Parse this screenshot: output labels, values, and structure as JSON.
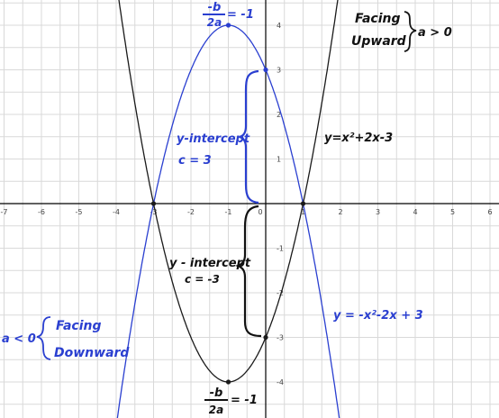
{
  "chart_data": {
    "type": "line",
    "xlim": [
      -7,
      6
    ],
    "ylim": [
      -4.7,
      4.4
    ],
    "grid": true,
    "x_ticks": [
      -7,
      -6,
      -5,
      -4,
      -3,
      -2,
      -1,
      0,
      1,
      2,
      3,
      4,
      5,
      6
    ],
    "y_ticks": [
      -4,
      -3,
      -2,
      -1,
      1,
      2,
      3,
      4
    ],
    "series": [
      {
        "name": "y=x²+2x-3",
        "color": "#1a1a1a",
        "a": 1,
        "b": 2,
        "c": -3
      },
      {
        "name": "y=-x²-2x+3",
        "color": "#2a3fd0",
        "a": -1,
        "b": -2,
        "c": 3
      }
    ],
    "points": [
      {
        "x": -1,
        "y": 4,
        "color": "#2a3fd0"
      },
      {
        "x": -1,
        "y": -4,
        "color": "#1a1a1a"
      },
      {
        "x": -3,
        "y": 0,
        "color": "#1a1a1a"
      },
      {
        "x": 1,
        "y": 0,
        "color": "#1a1a1a"
      },
      {
        "x": 0,
        "y": 3,
        "color": "#2a3fd0"
      },
      {
        "x": 0,
        "y": -3,
        "color": "#1a1a1a"
      }
    ]
  },
  "annotations": {
    "vertex_top_num": "-b",
    "vertex_top_den": "2a",
    "vertex_top_val": "= -1",
    "vertex_bot_num": "-b",
    "vertex_bot_den": "2a",
    "vertex_bot_val": "= -1",
    "facing_upward_1": "Facing",
    "facing_upward_2": "Upward",
    "a_gt_0": "a > 0",
    "a_lt_0": "a < 0",
    "facing_downward_1": "Facing",
    "facing_downward_2": "Downward",
    "y_intercept_top": "y-intercept",
    "c_top": "c = 3",
    "y_intercept_bottom": "y - intercept",
    "c_bottom": "c = -3",
    "eq_up": "y=x²+2x-3",
    "eq_down": "y = -x²-2x + 3"
  }
}
